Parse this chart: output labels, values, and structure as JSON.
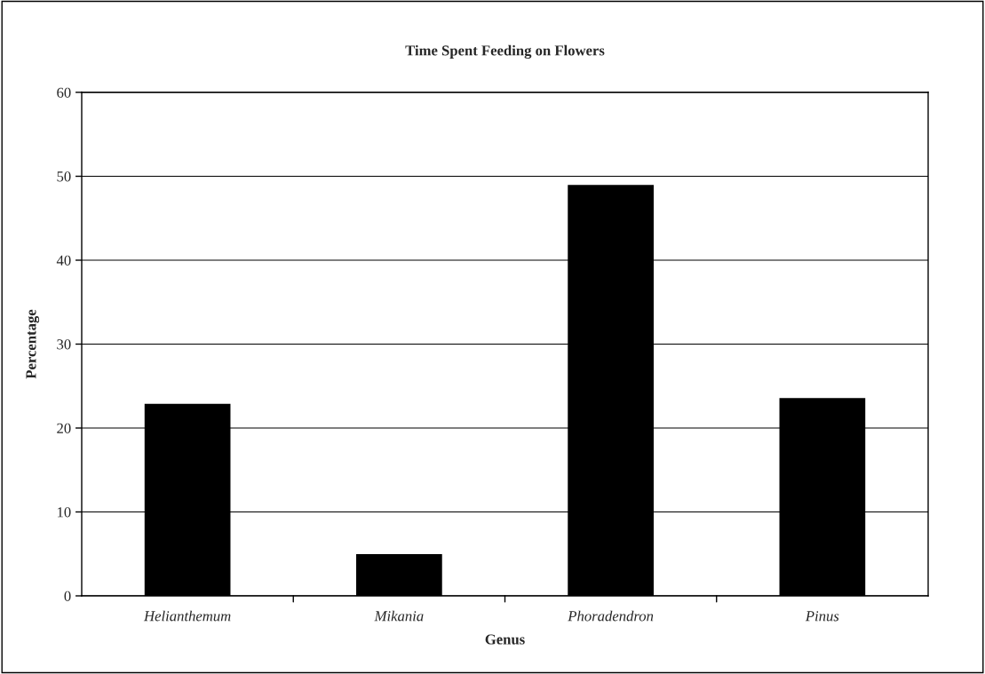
{
  "chart_data": {
    "type": "bar",
    "title": "Time Spent Feeding on Flowers",
    "xlabel": "Genus",
    "ylabel": "Percentage",
    "categories": [
      "Helianthemum",
      "Mikania",
      "Phoradendron",
      "Pinus"
    ],
    "values": [
      22.8,
      4.9,
      48.9,
      23.5
    ],
    "color": "#000000",
    "ylim": [
      0,
      60
    ],
    "yticks": [
      0,
      10,
      20,
      30,
      40,
      50,
      60
    ],
    "grid": "y",
    "legend": false
  }
}
